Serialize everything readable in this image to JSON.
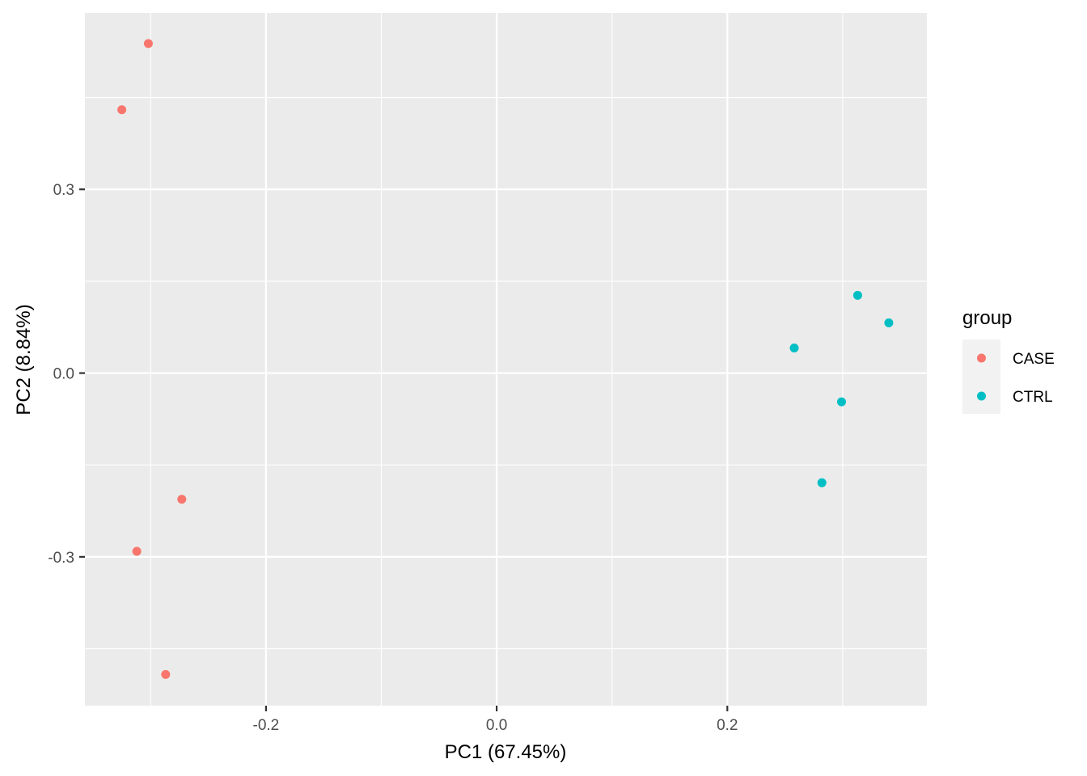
{
  "chart_data": {
    "type": "scatter",
    "xlabel": "PC1 (67.45%)",
    "ylabel": "PC2 (8.84%)",
    "xlim": [
      -0.357,
      0.373
    ],
    "ylim": [
      -0.543,
      0.588
    ],
    "x_ticks": [
      -0.2,
      0.0,
      0.2
    ],
    "x_tick_labels": [
      "-0.2",
      "0.0",
      "0.2"
    ],
    "y_ticks": [
      -0.3,
      0.0,
      0.3
    ],
    "y_tick_labels": [
      "-0.3",
      "0.0",
      "0.3"
    ],
    "grid": true,
    "background": "#EBEBEB",
    "legend": {
      "title": "group",
      "placement": "right"
    },
    "series": [
      {
        "name": "CASE",
        "color": "#F8766D",
        "points": [
          {
            "x": -0.302,
            "y": 0.538
          },
          {
            "x": -0.325,
            "y": 0.43
          },
          {
            "x": -0.273,
            "y": -0.206
          },
          {
            "x": -0.312,
            "y": -0.291
          },
          {
            "x": -0.287,
            "y": -0.492
          }
        ]
      },
      {
        "name": "CTRL",
        "color": "#00BFC4",
        "points": [
          {
            "x": 0.313,
            "y": 0.127
          },
          {
            "x": 0.34,
            "y": 0.082
          },
          {
            "x": 0.258,
            "y": 0.041
          },
          {
            "x": 0.299,
            "y": -0.047
          },
          {
            "x": 0.282,
            "y": -0.179
          }
        ]
      }
    ]
  }
}
